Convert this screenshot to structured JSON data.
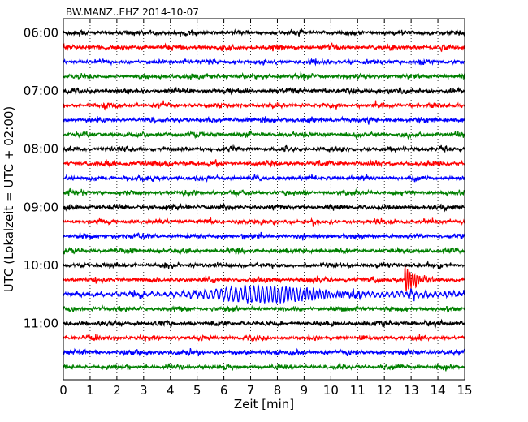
{
  "chart_data": {
    "type": "line",
    "title": "BW.MANZ..EHZ 2014-10-07",
    "xlabel": "Zeit  [min]",
    "ylabel": "UTC (Lokalzeit = UTC + 02:00)",
    "xlim": [
      0,
      15
    ],
    "x_ticks": [
      "0",
      "1",
      "2",
      "3",
      "4",
      "5",
      "6",
      "7",
      "8",
      "9",
      "10",
      "11",
      "12",
      "13",
      "14",
      "15"
    ],
    "y_tick_labels": [
      "06:00",
      "07:00",
      "08:00",
      "09:00",
      "10:00",
      "11:00"
    ],
    "trace_interval_minutes": 15,
    "first_trace": "06:00",
    "trace_count": 24,
    "trace_colors": [
      "#000000",
      "#ff0000",
      "#0000ff",
      "#008000"
    ],
    "grid": "vertical dotted",
    "events": [
      {
        "trace_start": "10:15",
        "color": "#ff0000",
        "description": "local earthquake",
        "onset_min": 12.75,
        "relative_amplitude": 1.0
      },
      {
        "trace_start": "10:30",
        "color": "#0000ff",
        "description": "teleseismic surface waves",
        "onset_min": 1.5,
        "peak_min": 7.5,
        "relative_amplitude": 0.55
      }
    ]
  }
}
